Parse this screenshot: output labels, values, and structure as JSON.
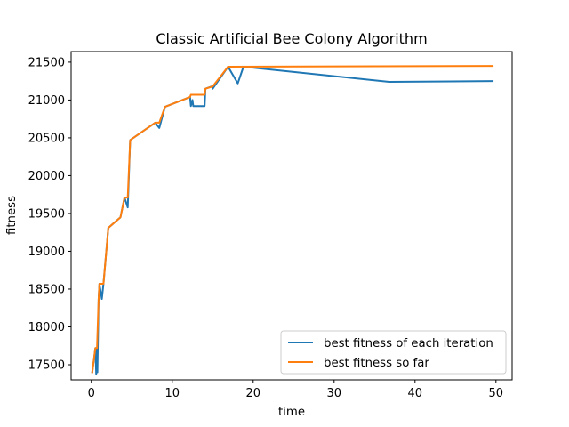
{
  "chart_data": {
    "type": "line",
    "title": "Classic Artificial Bee Colony Algorithm",
    "xlabel": "time",
    "ylabel": "fitness",
    "xlim": [
      -2.5,
      52
    ],
    "ylim": [
      17300,
      21640
    ],
    "xticks": [
      0,
      10,
      20,
      30,
      40,
      50
    ],
    "yticks": [
      17500,
      18000,
      18500,
      19000,
      19500,
      20000,
      20500,
      21000,
      21500
    ],
    "grid": false,
    "legend_position": "lower-right",
    "series": [
      {
        "name": "best fitness of each iteration",
        "color": "#1f77b4",
        "points": [
          [
            0.1,
            17390
          ],
          [
            0.5,
            17720
          ],
          [
            0.6,
            17380
          ],
          [
            0.7,
            17720
          ],
          [
            0.75,
            17400
          ],
          [
            0.9,
            18370
          ],
          [
            1.0,
            18570
          ],
          [
            1.3,
            18370
          ],
          [
            1.5,
            18570
          ],
          [
            2.1,
            19310
          ],
          [
            3.6,
            19450
          ],
          [
            4.1,
            19710
          ],
          [
            4.5,
            19580
          ],
          [
            4.8,
            20470
          ],
          [
            7.9,
            20700
          ],
          [
            8.4,
            20630
          ],
          [
            9.1,
            20910
          ],
          [
            12.2,
            21040
          ],
          [
            12.3,
            20920
          ],
          [
            12.5,
            21000
          ],
          [
            12.6,
            20920
          ],
          [
            14.0,
            20920
          ],
          [
            14.1,
            21150
          ],
          [
            14.9,
            21180
          ],
          [
            15.0,
            21150
          ],
          [
            16.9,
            21440
          ],
          [
            18.1,
            21220
          ],
          [
            18.8,
            21440
          ],
          [
            36.8,
            21240
          ],
          [
            49.7,
            21250
          ]
        ]
      },
      {
        "name": "best fitness so far",
        "color": "#ff7f0e",
        "points": [
          [
            0.1,
            17390
          ],
          [
            0.5,
            17720
          ],
          [
            0.7,
            17720
          ],
          [
            0.9,
            18370
          ],
          [
            1.0,
            18570
          ],
          [
            1.5,
            18570
          ],
          [
            2.1,
            19310
          ],
          [
            3.6,
            19450
          ],
          [
            4.1,
            19710
          ],
          [
            4.5,
            19710
          ],
          [
            4.8,
            20470
          ],
          [
            7.9,
            20700
          ],
          [
            8.4,
            20700
          ],
          [
            9.1,
            20910
          ],
          [
            12.2,
            21040
          ],
          [
            12.3,
            21070
          ],
          [
            14.0,
            21070
          ],
          [
            14.1,
            21150
          ],
          [
            15.0,
            21180
          ],
          [
            16.9,
            21440
          ],
          [
            49.7,
            21450
          ]
        ]
      }
    ]
  }
}
